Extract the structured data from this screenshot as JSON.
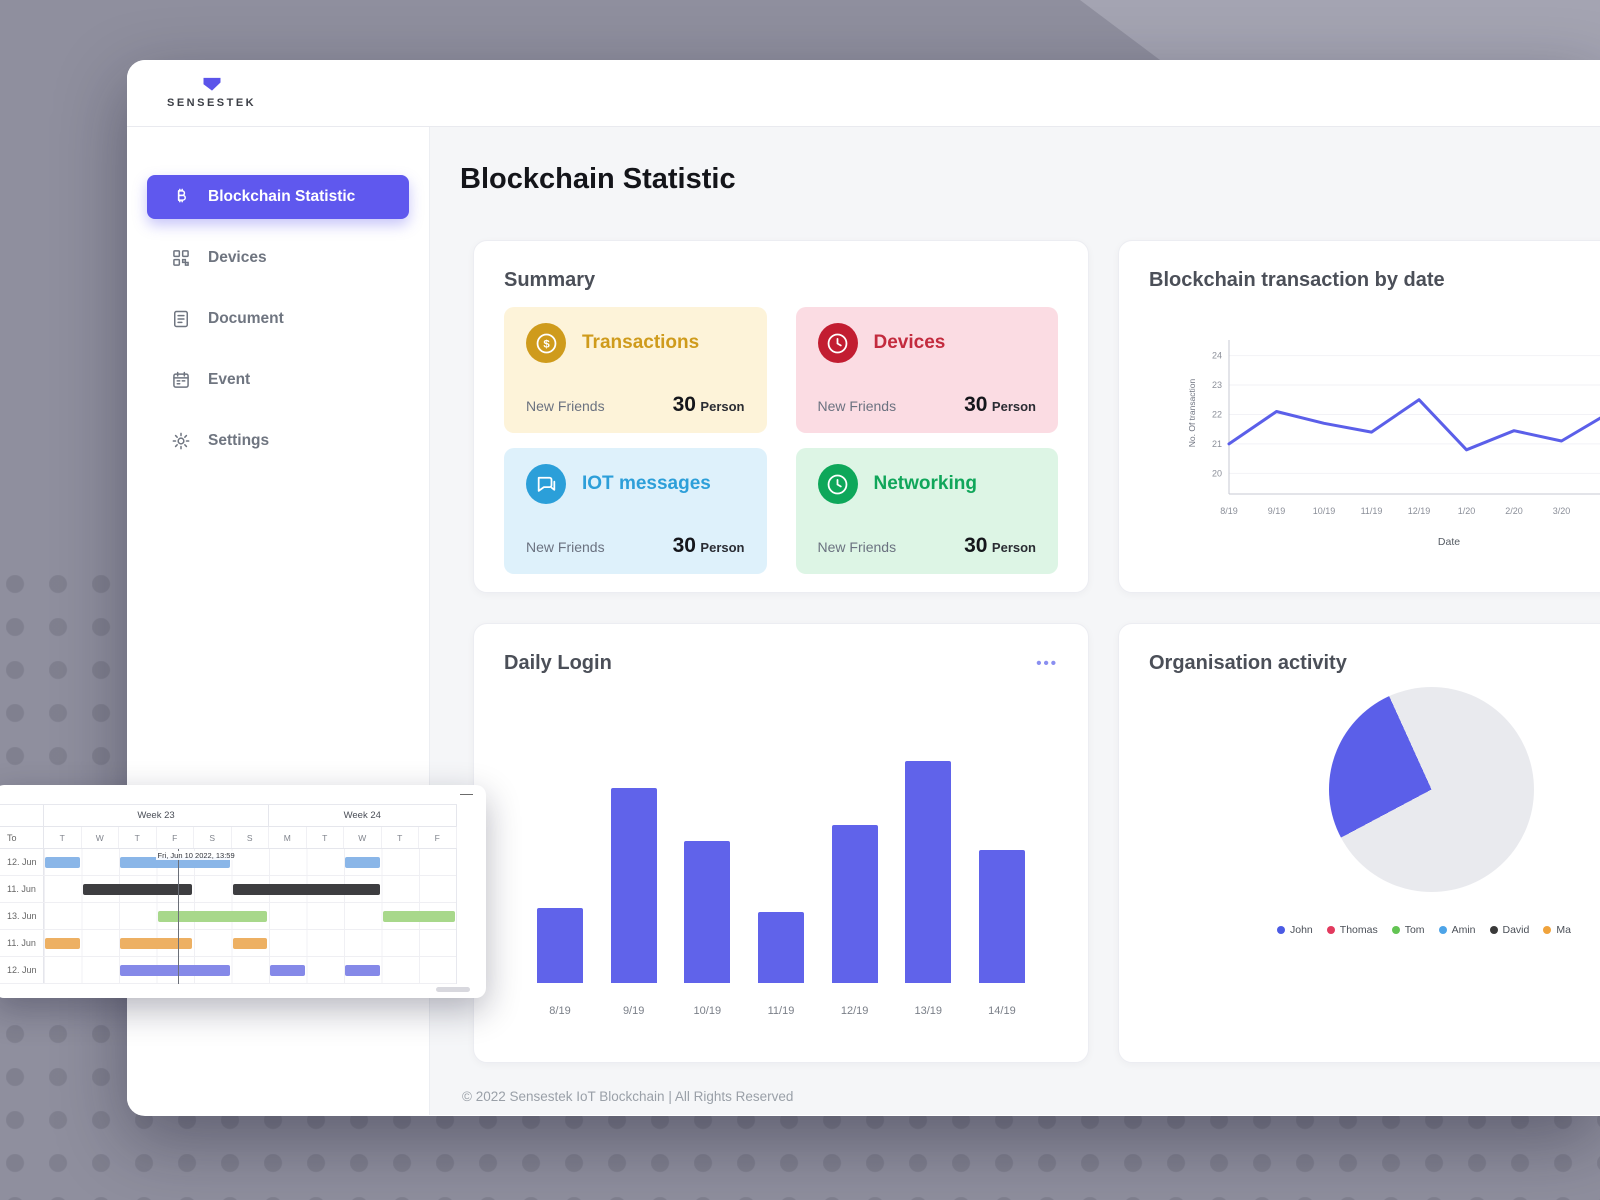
{
  "brand": {
    "name": "SENSESTEK"
  },
  "window": {
    "minimize_glyph": "—",
    "menu_glyph": "•••"
  },
  "sidebar": {
    "items": [
      {
        "label": "Blockchain Statistic",
        "icon": "bitcoin-icon",
        "active": true
      },
      {
        "label": "Devices",
        "icon": "devices-icon",
        "active": false
      },
      {
        "label": "Document",
        "icon": "document-icon",
        "active": false
      },
      {
        "label": "Event",
        "icon": "event-icon",
        "active": false
      },
      {
        "label": "Settings",
        "icon": "settings-icon",
        "active": false
      }
    ]
  },
  "page": {
    "title": "Blockchain Statistic",
    "footer": "© 2022 Sensestek IoT Blockchain | All Rights Reserved"
  },
  "summary": {
    "title": "Summary",
    "tiles": [
      {
        "label": "Transactions",
        "icon": "dollar-coin-icon",
        "sub_label": "New Friends",
        "value": "30",
        "unit": "Person",
        "bg": "#fdf3d9",
        "accent": "#cf9b1c",
        "icon_bg": "#cf9b1c"
      },
      {
        "label": "Devices",
        "icon": "clock-icon",
        "sub_label": "New Friends",
        "value": "30",
        "unit": "Person",
        "bg": "#fbdce3",
        "accent": "#c32b3e",
        "icon_bg": "#c21d31"
      },
      {
        "label": "IOT messages",
        "icon": "chat-icon",
        "sub_label": "New Friends",
        "value": "30",
        "unit": "Person",
        "bg": "#def1fb",
        "accent": "#2d9fd9",
        "icon_bg": "#2b9fd9"
      },
      {
        "label": "Networking",
        "icon": "clock-icon",
        "sub_label": "New Friends",
        "value": "30",
        "unit": "Person",
        "bg": "#ddf5e5",
        "accent": "#10a65a",
        "icon_bg": "#0ea75a"
      }
    ]
  },
  "cards": {
    "line_title": "Blockchain transaction by date",
    "bar_title": "Daily Login",
    "pie_title": "Organisation activity"
  },
  "chart_data": [
    {
      "type": "line",
      "title": "Blockchain transaction by date",
      "x": [
        "8/19",
        "9/19",
        "10/19",
        "11/19",
        "12/19",
        "1/20",
        "2/20",
        "3/20"
      ],
      "values": [
        21,
        22.1,
        21.7,
        21.4,
        22.5,
        20.8,
        21.45,
        21.1
      ],
      "edge_value": 21.9,
      "xlabel": "Date",
      "ylabel": "No. Of transaction",
      "yticks": [
        24,
        23,
        22,
        21,
        20
      ],
      "ylim": [
        19.3,
        24.8
      ],
      "color": "#5b5fe9",
      "grid": false,
      "legend": "none"
    },
    {
      "type": "bar",
      "title": "Daily Login",
      "categories": [
        "8/19",
        "9/19",
        "10/19",
        "11/19",
        "12/19",
        "13/19",
        "14/19"
      ],
      "values": [
        34,
        88,
        64,
        32,
        71,
        100,
        60
      ],
      "ylim": [
        0,
        100
      ],
      "color": "#6063ea",
      "axis_hidden": true
    },
    {
      "type": "pie",
      "title": "Organisation activity",
      "highlight": {
        "label": "John",
        "pct": 26,
        "start_deg": 242,
        "color": "#5b5fe9"
      },
      "remainder_color": "#e9eaee",
      "legend_position": "bottom",
      "legend": [
        {
          "label": "John",
          "color": "#4b5be4"
        },
        {
          "label": "Thomas",
          "color": "#e23a5e"
        },
        {
          "label": "Tom",
          "color": "#63c453"
        },
        {
          "label": "Amin",
          "color": "#4da4e8"
        },
        {
          "label": "David",
          "color": "#3a3a3a"
        },
        {
          "label": "Ma",
          "color": "#f0a33c"
        }
      ]
    },
    {
      "type": "gantt",
      "left_header": "To",
      "weeks": [
        {
          "label": "Week 23",
          "span": 6
        },
        {
          "label": "Week 24",
          "span": 5
        }
      ],
      "days": [
        "T",
        "W",
        "T",
        "F",
        "S",
        "S",
        "M",
        "T",
        "W",
        "T",
        "F"
      ],
      "marker": {
        "frac": 0.3237,
        "tooltip": "Fri, Jun 10 2022, 13:59"
      },
      "rows": [
        {
          "date": "12. Jun",
          "color": "#8ab6e8",
          "bars": [
            [
              0,
              1
            ],
            [
              2,
              3
            ],
            [
              8,
              1
            ]
          ]
        },
        {
          "date": "11. Jun",
          "color": "#3d3d40",
          "bars": [
            [
              1,
              3
            ],
            [
              5,
              4
            ]
          ]
        },
        {
          "date": "13. Jun",
          "color": "#a8d88b",
          "bars": [
            [
              3,
              3
            ],
            [
              9,
              2
            ]
          ]
        },
        {
          "date": "11. Jun",
          "color": "#edb063",
          "bars": [
            [
              0,
              1
            ],
            [
              2,
              2
            ],
            [
              5,
              1
            ]
          ]
        },
        {
          "date": "12. Jun",
          "color": "#8589e8",
          "bars": [
            [
              2,
              3
            ],
            [
              6,
              1
            ],
            [
              8,
              1
            ]
          ]
        }
      ]
    }
  ]
}
